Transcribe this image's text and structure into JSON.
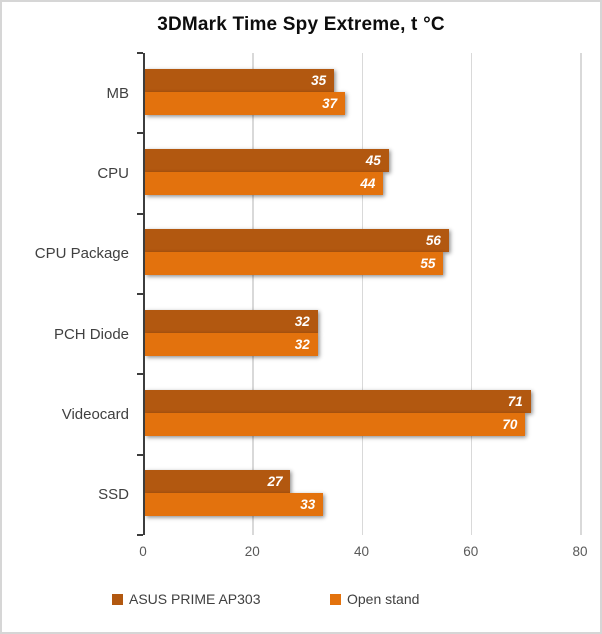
{
  "title": "3DMark Time Spy Extreme, t °C",
  "chart_data": {
    "type": "bar",
    "orientation": "horizontal",
    "title": "3DMark Time Spy Extreme, t °C",
    "categories": [
      "MB",
      "CPU",
      "CPU Package",
      "PCH Diode",
      "Videocard",
      "SSD"
    ],
    "series": [
      {
        "name": "ASUS PRIME AP303",
        "color": "#B25810",
        "values": [
          35,
          45,
          56,
          32,
          71,
          27
        ]
      },
      {
        "name": "Open stand",
        "color": "#E3720D",
        "values": [
          37,
          44,
          55,
          32,
          70,
          33
        ]
      }
    ],
    "xlabel": "",
    "ylabel": "",
    "xlim": [
      0,
      80
    ],
    "xticks": [
      0,
      20,
      40,
      60,
      80
    ],
    "grid": true,
    "legend_position": "bottom",
    "value_labels": "inside-end"
  },
  "colors": {
    "series1": "#B25810",
    "series2": "#E3720D",
    "axis_line": "#3D3D3D",
    "gridline": "#D9D9D9",
    "tick_label_text": "#595959",
    "category_label_text": "#404040",
    "legend_text": "#404040",
    "value_label_text": "#FFFFFF",
    "title_text": "#0D0D0D",
    "frame_border": "#D6D6D6",
    "background": "#FFFFFF"
  }
}
